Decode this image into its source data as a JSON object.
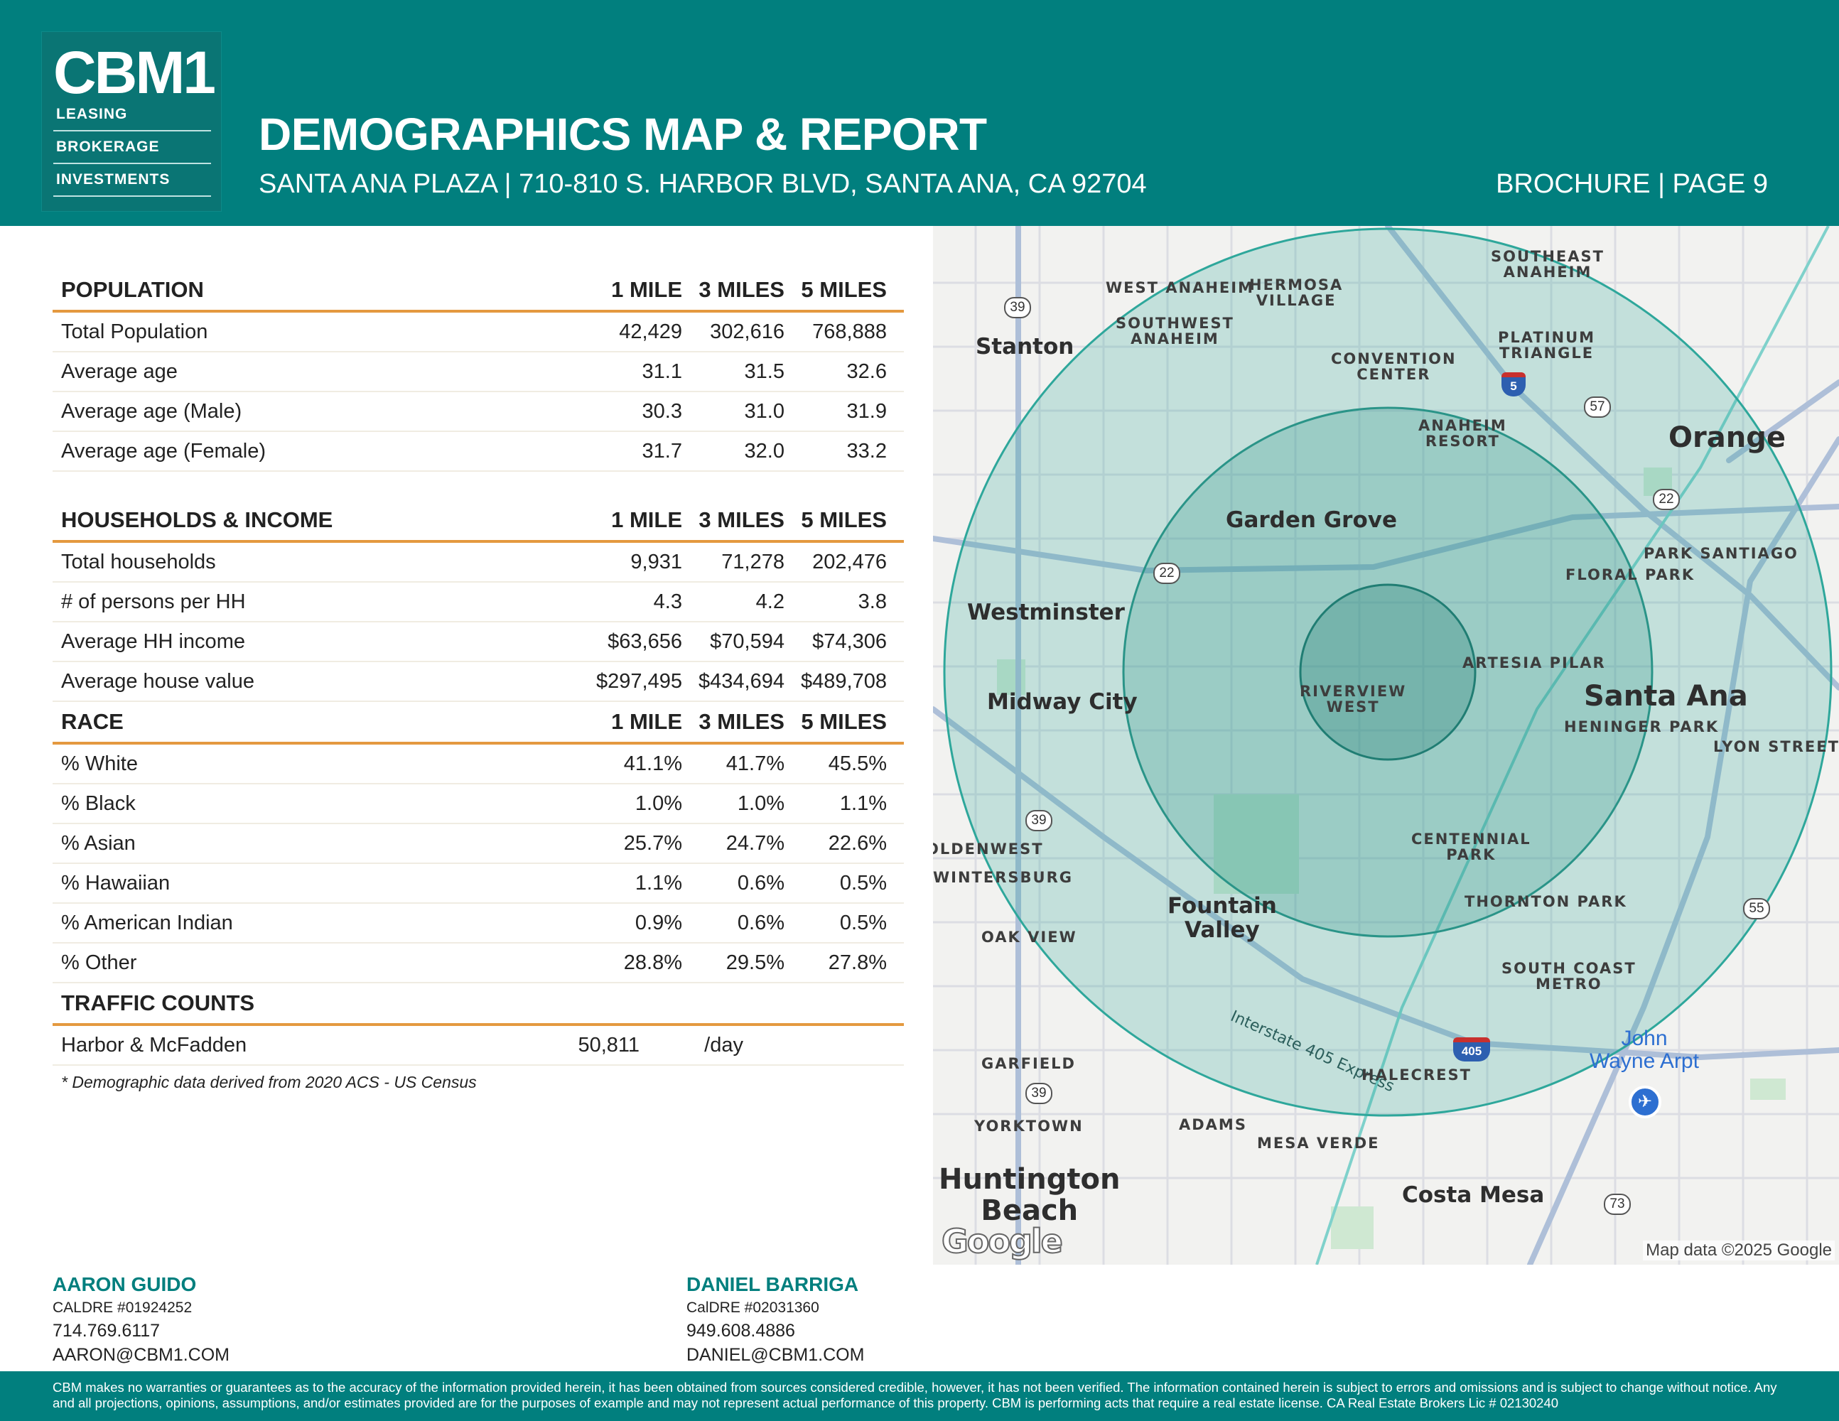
{
  "header": {
    "logo_main": "CBM1",
    "logo_lines": [
      "LEASING",
      "BROKERAGE",
      "INVESTMENTS"
    ],
    "title": "DEMOGRAPHICS MAP & REPORT",
    "subtitle": "SANTA ANA PLAZA | 710-810 S. HARBOR BLVD, SANTA ANA, CA 92704",
    "page_label": "BROCHURE | PAGE 9"
  },
  "columns": [
    "1 MILE",
    "3 MILES",
    "5 MILES"
  ],
  "population": {
    "heading": "POPULATION",
    "rows": [
      {
        "label": "Total Population",
        "v1": "42,429",
        "v3": "302,616",
        "v5": "768,888"
      },
      {
        "label": "Average age",
        "v1": "31.1",
        "v3": "31.5",
        "v5": "32.6"
      },
      {
        "label": "Average age (Male)",
        "v1": "30.3",
        "v3": "31.0",
        "v5": "31.9"
      },
      {
        "label": "Average age (Female)",
        "v1": "31.7",
        "v3": "32.0",
        "v5": "33.2"
      }
    ]
  },
  "households": {
    "heading": "HOUSEHOLDS & INCOME",
    "rows": [
      {
        "label": "Total households",
        "v1": "9,931",
        "v3": "71,278",
        "v5": "202,476"
      },
      {
        "label": "# of persons per HH",
        "v1": "4.3",
        "v3": "4.2",
        "v5": "3.8"
      },
      {
        "label": "Average HH income",
        "v1": "$63,656",
        "v3": "$70,594",
        "v5": "$74,306"
      },
      {
        "label": "Average house value",
        "v1": "$297,495",
        "v3": "$434,694",
        "v5": "$489,708"
      }
    ]
  },
  "race": {
    "heading": "RACE",
    "rows": [
      {
        "label": "% White",
        "v1": "41.1%",
        "v3": "41.7%",
        "v5": "45.5%"
      },
      {
        "label": "% Black",
        "v1": "1.0%",
        "v3": "1.0%",
        "v5": "1.1%"
      },
      {
        "label": "% Asian",
        "v1": "25.7%",
        "v3": "24.7%",
        "v5": "22.6%"
      },
      {
        "label": "% Hawaiian",
        "v1": "1.1%",
        "v3": "0.6%",
        "v5": "0.5%"
      },
      {
        "label": "% American Indian",
        "v1": "0.9%",
        "v3": "0.6%",
        "v5": "0.5%"
      },
      {
        "label": "% Other",
        "v1": "28.8%",
        "v3": "29.5%",
        "v5": "27.8%"
      }
    ]
  },
  "traffic": {
    "heading": "TRAFFIC COUNTS",
    "rows": [
      {
        "label": "Harbor & McFadden",
        "value": "50,811",
        "unit": "/day"
      }
    ]
  },
  "footnote": "* Demographic data derived from 2020 ACS - US Census",
  "map": {
    "labels": {
      "west_anaheim": "WEST ANAHEIM",
      "hermosa_village": "HERMOSA\nVILLAGE",
      "southeast_anaheim": "SOUTHEAST\nANAHEIM",
      "southwest_anaheim": "SOUTHWEST\nANAHEIM",
      "stanton": "Stanton",
      "convention_center": "CONVENTION\nCENTER",
      "platinum_triangle": "PLATINUM\nTRIANGLE",
      "anaheim_resort": "ANAHEIM\nRESORT",
      "orange": "Orange",
      "garden_grove": "Garden Grove",
      "park_santiago": "PARK SANTIAGO",
      "floral_park": "FLORAL PARK",
      "westminster": "Westminster",
      "artesia_pilar": "ARTESIA PILAR",
      "riverview_west": "RIVERVIEW\nWEST",
      "midway_city": "Midway City",
      "santa_ana": "Santa Ana",
      "heninger_park": "HENINGER PARK",
      "lyon_street": "LYON STREET",
      "oldenwest": "OLDENWEST",
      "wintersburg": "WINTERSBURG",
      "centennial_park": "CENTENNIAL\nPARK",
      "fountain_valley": "Fountain\nValley",
      "thornton_park": "THORNTON PARK",
      "oak_view": "OAK VIEW",
      "south_coast_metro": "SOUTH COAST\nMETRO",
      "interstate": "Interstate 405 Express",
      "john_wayne": "John\nWayne Arpt",
      "garfield": "GARFIELD",
      "halecrest": "HALECREST",
      "yorktown": "YORKTOWN",
      "adams": "ADAMS",
      "mesa_verde": "MESA VERDE",
      "huntington_beach": "Huntington\nBeach",
      "costa_mesa": "Costa Mesa"
    },
    "routes": [
      "39",
      "57",
      "22",
      "22",
      "39",
      "55",
      "39",
      "73"
    ],
    "shields": [
      "5",
      "405"
    ],
    "google": "Google",
    "credit": "Map data ©2025 Google"
  },
  "agents": [
    {
      "name": "AARON GUIDO",
      "license": "CALDRE #01924252",
      "phone": "714.769.6117",
      "email": "AARON@CBM1.COM"
    },
    {
      "name": "DANIEL BARRIGA",
      "license": "CalDRE #02031360",
      "phone": "949.608.4886",
      "email": "DANIEL@CBM1.COM"
    }
  ],
  "disclaimer": "CBM makes no warranties or guarantees as to the accuracy of the information provided herein, it has been obtained from sources considered credible, however, it has not been verified. The information contained herein is subject to errors and omissions and is subject to change without notice. Any and all projections, opinions, assumptions, and/or estimates provided are for the purposes of example and may not represent actual performance of this property. CBM is performing acts that require a real estate license. CA Real Estate Brokers Lic # 02130240",
  "colors": {
    "brand": "#017f7e",
    "accent_rule": "#e4993f",
    "map_ring": "#2ea79b"
  }
}
